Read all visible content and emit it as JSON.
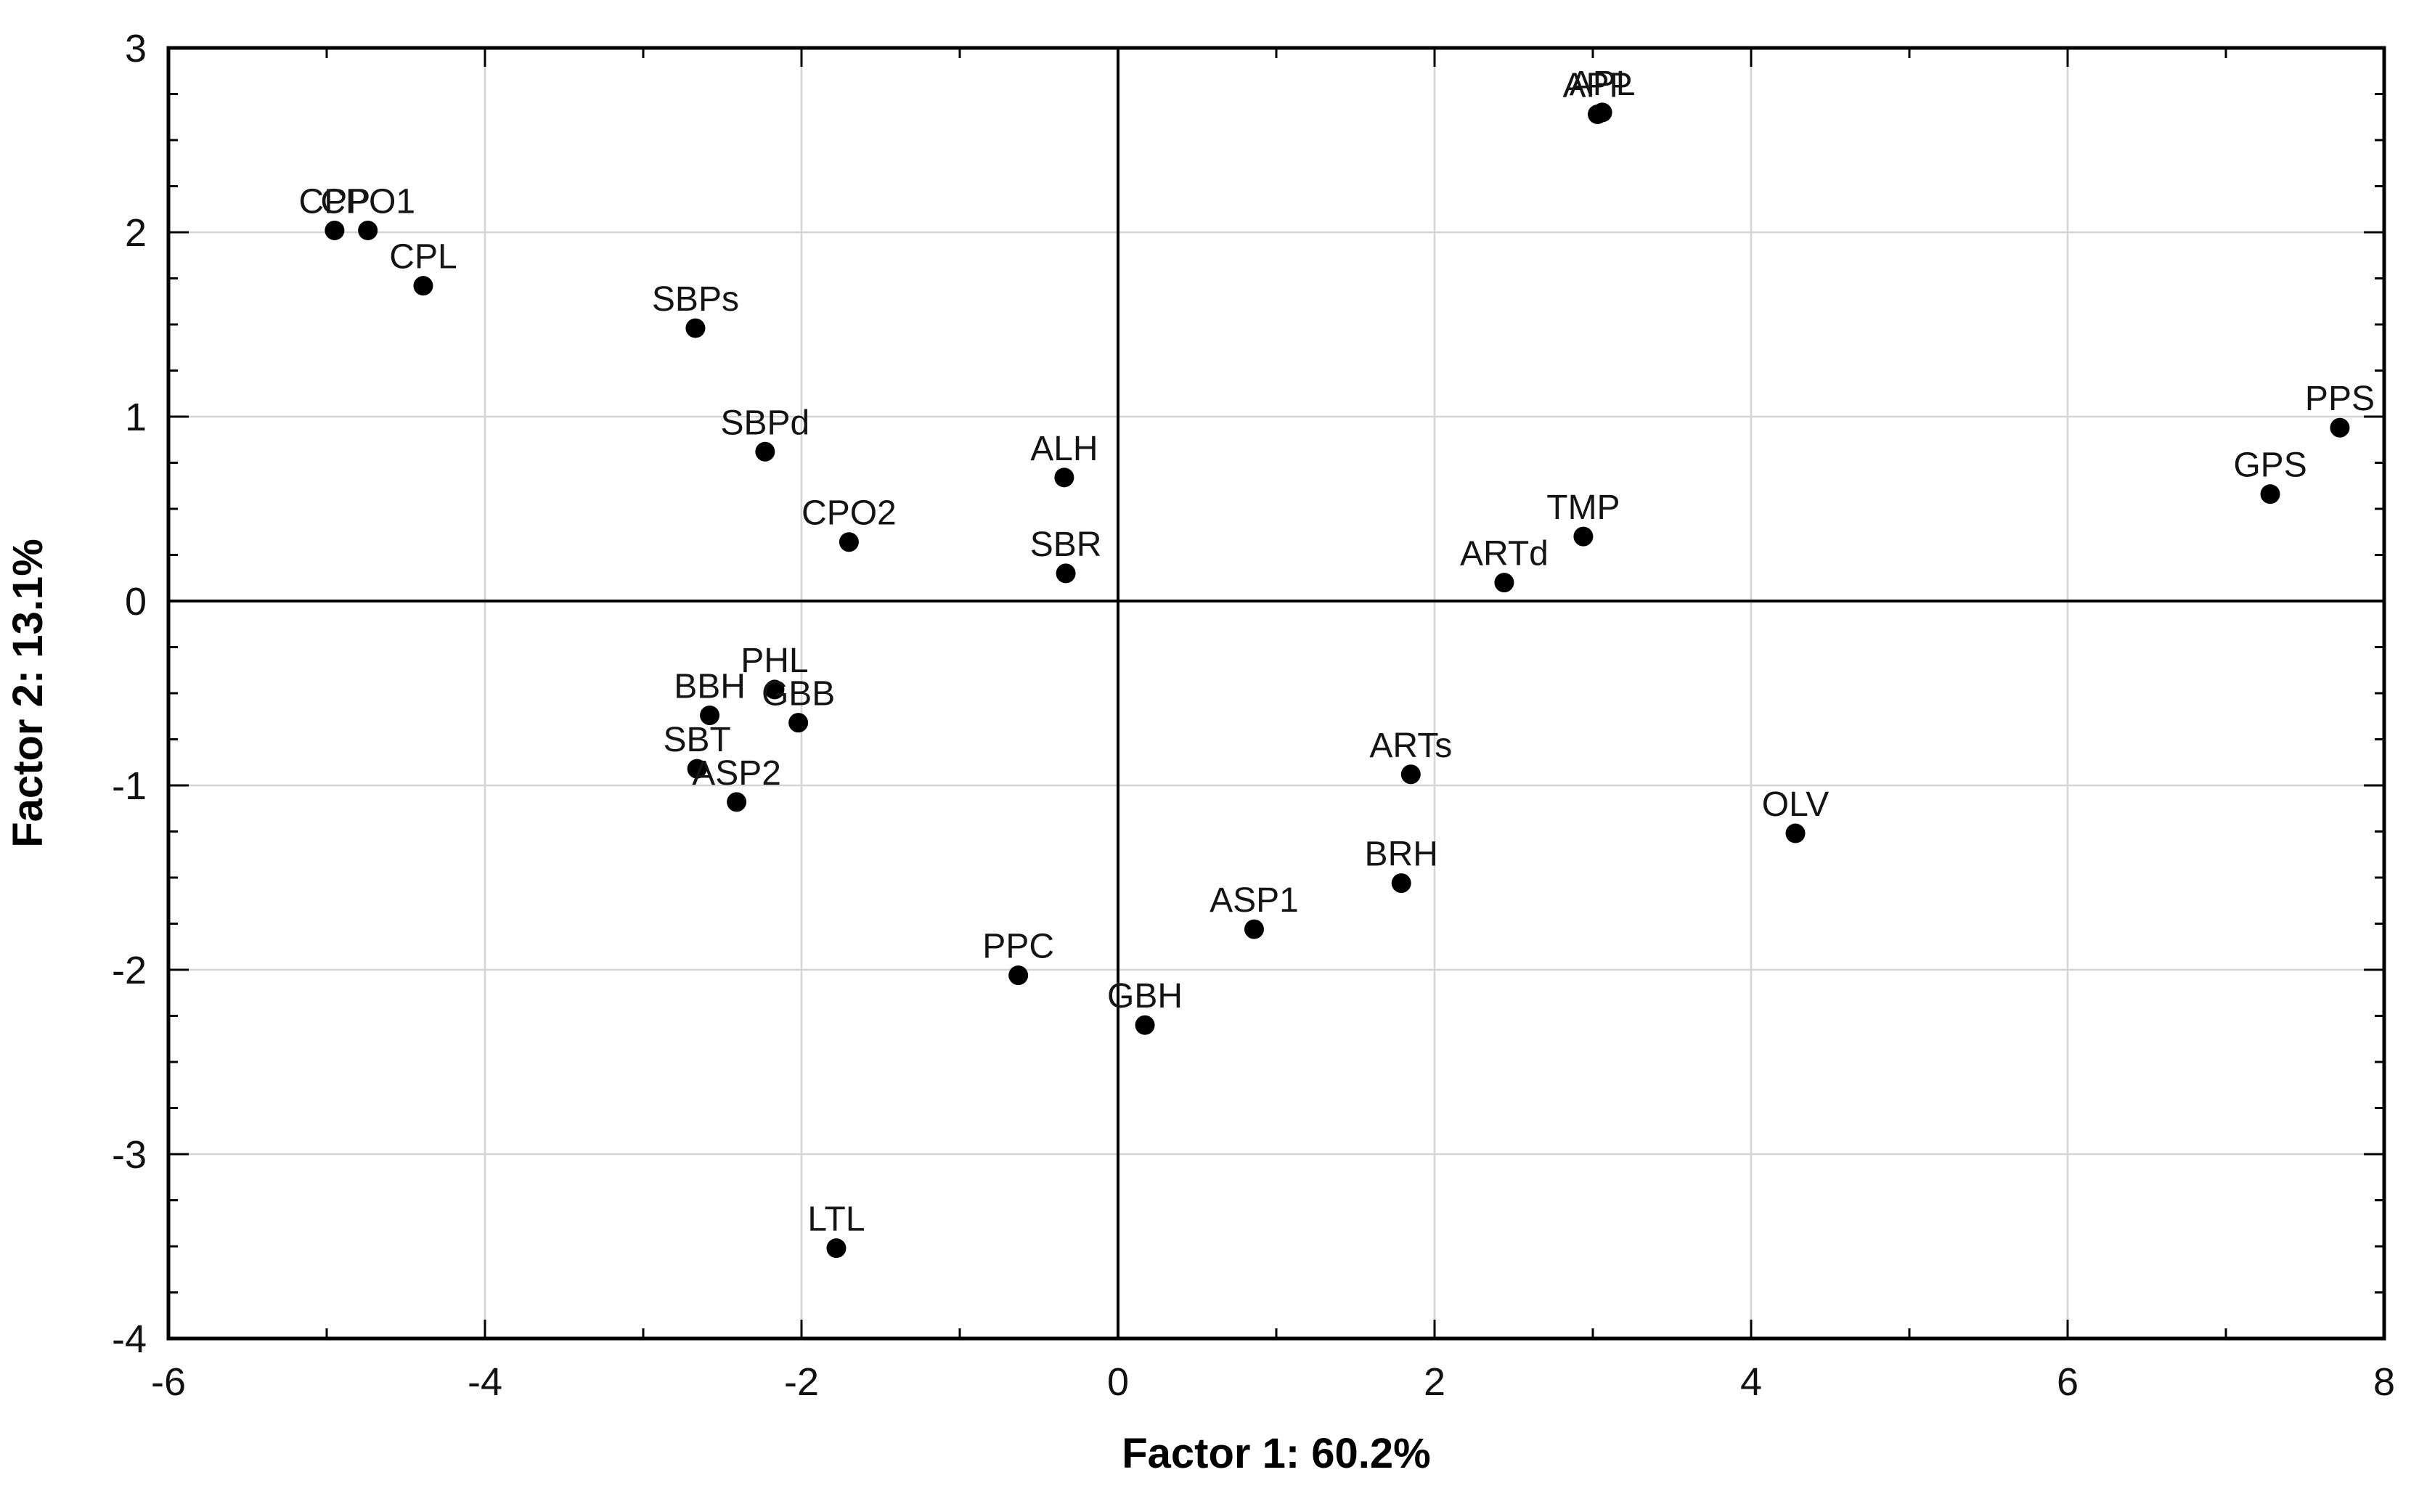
{
  "chart_data": {
    "type": "scatter",
    "title": "",
    "xlabel": "Factor 1: 60.2%",
    "ylabel": "Factor 2: 13.1%",
    "xlim": [
      -6,
      8
    ],
    "ylim": [
      -4,
      3
    ],
    "x_ticks": [
      -6,
      -4,
      -2,
      0,
      2,
      4,
      6,
      8
    ],
    "y_ticks": [
      -4,
      -3,
      -2,
      -1,
      0,
      1,
      2,
      3
    ],
    "x_minor_ticks": [
      -5,
      -3,
      -1,
      1,
      3,
      5,
      7
    ],
    "y_minor_step": 0.25,
    "x_gridlines": [
      -4,
      -2,
      2,
      4,
      6
    ],
    "y_gridlines": [
      -3,
      -2,
      -1,
      1,
      2
    ],
    "zero_lines": true,
    "legend": "none",
    "grid": "on",
    "colors": {
      "marker": "#000000",
      "label_text": "#141414",
      "tick_text": "#111111",
      "gridline": "#d4d4d4",
      "axis": "#000000",
      "background": "#ffffff"
    },
    "points": [
      {
        "label": "CPP",
        "x": -4.95,
        "y": 2.01
      },
      {
        "label": "CPO1",
        "x": -4.74,
        "y": 2.01
      },
      {
        "label": "CPL",
        "x": -4.39,
        "y": 1.71
      },
      {
        "label": "SBPs",
        "x": -2.67,
        "y": 1.48
      },
      {
        "label": "SBPd",
        "x": -2.23,
        "y": 0.81
      },
      {
        "label": "CPO2",
        "x": -1.7,
        "y": 0.32
      },
      {
        "label": "ALH",
        "x": -0.34,
        "y": 0.67
      },
      {
        "label": "SBR",
        "x": -0.33,
        "y": 0.15
      },
      {
        "label": "PHL",
        "x": -2.17,
        "y": -0.48
      },
      {
        "label": "BBH",
        "x": -2.58,
        "y": -0.62
      },
      {
        "label": "GBB",
        "x": -2.02,
        "y": -0.66
      },
      {
        "label": "SBT",
        "x": -2.66,
        "y": -0.91
      },
      {
        "label": "ASP2",
        "x": -2.41,
        "y": -1.09
      },
      {
        "label": "APP",
        "x": 3.03,
        "y": 2.64
      },
      {
        "label": "APL",
        "x": 3.06,
        "y": 2.65
      },
      {
        "label": "TMP",
        "x": 2.94,
        "y": 0.35
      },
      {
        "label": "ARTd",
        "x": 2.44,
        "y": 0.1
      },
      {
        "label": "ARTs",
        "x": 1.85,
        "y": -0.94
      },
      {
        "label": "BRH",
        "x": 1.79,
        "y": -1.53
      },
      {
        "label": "ASP1",
        "x": 0.86,
        "y": -1.78
      },
      {
        "label": "PPC",
        "x": -0.63,
        "y": -2.03
      },
      {
        "label": "GBH",
        "x": 0.17,
        "y": -2.3
      },
      {
        "label": "LTL",
        "x": -1.78,
        "y": -3.51
      },
      {
        "label": "OLV",
        "x": 4.28,
        "y": -1.26
      },
      {
        "label": "GPS",
        "x": 7.28,
        "y": 0.58
      },
      {
        "label": "PPS",
        "x": 7.72,
        "y": 0.94
      }
    ]
  }
}
